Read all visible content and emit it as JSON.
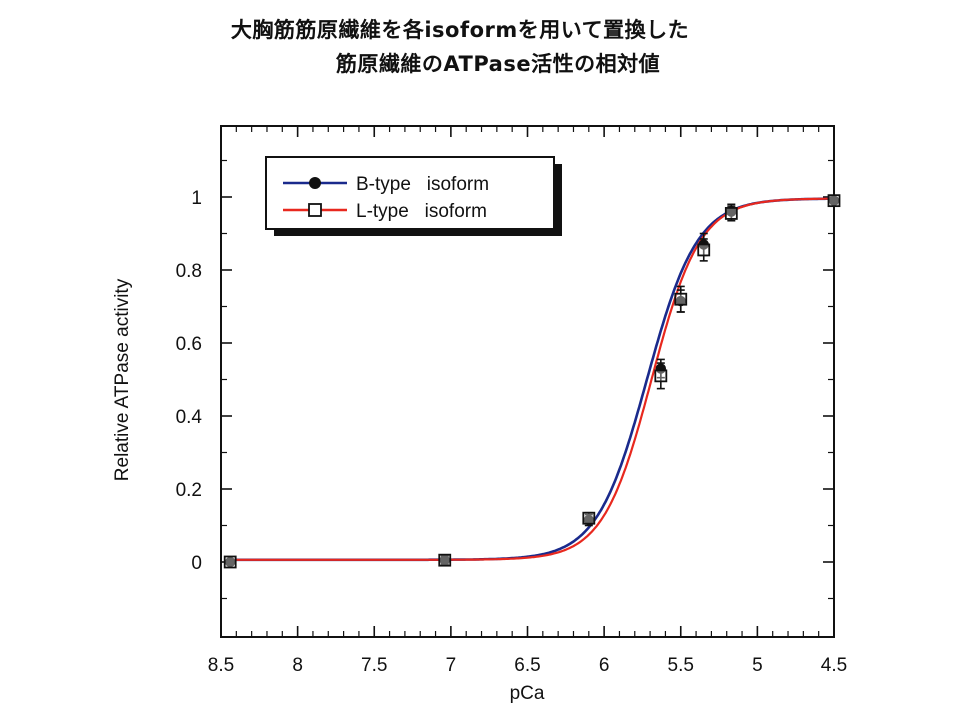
{
  "title": {
    "line1": "大胸筋筋原繊維を各isoformを用いて置換した",
    "line2": "筋原繊維のATPase活性の相対値"
  },
  "chart_data": {
    "type": "line",
    "title": "大胸筋筋原繊維を各isoformを用いて置換した 筋原繊維のATPase活性の相対値",
    "xlabel": "pCa",
    "ylabel": "Relative ATPase activity",
    "xlim": [
      8.5,
      4.5
    ],
    "ylim": [
      -0.2,
      1.18
    ],
    "x_reversed": true,
    "xticks": [
      "8.5",
      "8",
      "7.5",
      "7",
      "6.5",
      "6",
      "5.5",
      "5",
      "4.5"
    ],
    "yticks": [
      "0",
      "0.2",
      "0.4",
      "0.6",
      "0.8",
      "1"
    ],
    "legend_position": "top-left",
    "grid": false,
    "series": [
      {
        "name": "B-type   isoform",
        "color": "#1a2a8c",
        "marker": "filled-circle",
        "fit": {
          "pca50": 5.72,
          "hill": 2.65
        },
        "points": [
          {
            "x": 8.44,
            "y": 0.0,
            "err": 0.005
          },
          {
            "x": 7.04,
            "y": 0.005,
            "err": 0.012
          },
          {
            "x": 6.1,
            "y": 0.115,
            "err": 0.015
          },
          {
            "x": 5.63,
            "y": 0.53,
            "err": 0.025
          },
          {
            "x": 5.5,
            "y": 0.715,
            "err": 0.03
          },
          {
            "x": 5.35,
            "y": 0.87,
            "err": 0.03
          },
          {
            "x": 5.17,
            "y": 0.96,
            "err": 0.02
          },
          {
            "x": 4.5,
            "y": 0.99,
            "err": 0.008
          }
        ]
      },
      {
        "name": "L-type   isoform",
        "color": "#e8281e",
        "marker": "open-square",
        "fit": {
          "pca50": 5.69,
          "hill": 2.75
        },
        "points": [
          {
            "x": 8.44,
            "y": 0.0,
            "err": 0.005
          },
          {
            "x": 7.04,
            "y": 0.005,
            "err": 0.012
          },
          {
            "x": 6.1,
            "y": 0.12,
            "err": 0.015
          },
          {
            "x": 5.63,
            "y": 0.51,
            "err": 0.035
          },
          {
            "x": 5.5,
            "y": 0.72,
            "err": 0.035
          },
          {
            "x": 5.35,
            "y": 0.855,
            "err": 0.03
          },
          {
            "x": 5.17,
            "y": 0.955,
            "err": 0.02
          },
          {
            "x": 4.5,
            "y": 0.99,
            "err": 0.008
          }
        ]
      }
    ]
  }
}
